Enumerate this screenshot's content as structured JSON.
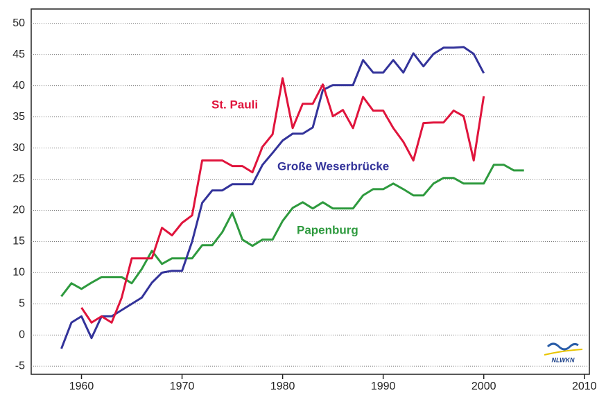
{
  "chart_data": {
    "type": "line",
    "x": [
      1958,
      1959,
      1960,
      1961,
      1962,
      1963,
      1964,
      1965,
      1966,
      1967,
      1968,
      1969,
      1970,
      1971,
      1972,
      1973,
      1974,
      1975,
      1976,
      1977,
      1978,
      1979,
      1980,
      1981,
      1982,
      1983,
      1984,
      1985,
      1986,
      1987,
      1988,
      1989,
      1990,
      1991,
      1992,
      1993,
      1994,
      1995,
      1996,
      1997,
      1998,
      1999,
      2000,
      2001,
      2002,
      2003,
      2004
    ],
    "series": [
      {
        "name": "Papenburg",
        "color": "#2e9a3e",
        "values": [
          6.2,
          8.3,
          7.4,
          8.4,
          9.3,
          9.3,
          9.3,
          8.3,
          10.6,
          13.5,
          11.4,
          12.3,
          12.3,
          12.3,
          14.4,
          14.4,
          16.5,
          19.6,
          15.3,
          14.3,
          15.3,
          15.3,
          18.3,
          20.4,
          21.3,
          20.3,
          21.3,
          20.3,
          20.3,
          20.3,
          22.4,
          23.4,
          23.4,
          24.3,
          23.4,
          22.4,
          22.4,
          24.3,
          25.2,
          25.2,
          24.3,
          24.3,
          24.3,
          27.3,
          27.3,
          26.4,
          26.4
        ]
      },
      {
        "name": "Große Weserbrücke",
        "color": "#33339a",
        "values": [
          -2.2,
          2.0,
          3.0,
          -0.5,
          3.0,
          3.0,
          4.0,
          5.0,
          6.0,
          8.4,
          10.0,
          10.3,
          10.3,
          15.0,
          21.2,
          23.2,
          23.2,
          24.2,
          24.2,
          24.2,
          27.3,
          29.2,
          31.2,
          32.3,
          32.3,
          33.3,
          39.3,
          40.1,
          40.1,
          40.1,
          44.1,
          42.1,
          42.1,
          44.1,
          42.1,
          45.2,
          43.1,
          45.1,
          46.1,
          46.1,
          46.2,
          45.1,
          42.0,
          null,
          null,
          null,
          null
        ]
      },
      {
        "name": "St. Pauli",
        "color": "#e0143c",
        "values": [
          null,
          null,
          4.4,
          2.0,
          3.0,
          2.0,
          6.0,
          12.3,
          12.3,
          12.3,
          17.2,
          16.0,
          18.0,
          19.2,
          28.0,
          28.0,
          28.0,
          27.1,
          27.1,
          26.1,
          30.2,
          32.2,
          41.2,
          33.2,
          37.1,
          37.1,
          40.2,
          35.1,
          36.1,
          33.2,
          38.2,
          36.0,
          36.0,
          33.2,
          31.0,
          28.0,
          34.0,
          34.1,
          34.1,
          36.0,
          35.1,
          28.0,
          38.3,
          null,
          null,
          null,
          null
        ]
      }
    ],
    "xlim": [
      1955,
      2010.5
    ],
    "xticks": [
      1960,
      1970,
      1980,
      1990,
      2000,
      2010
    ],
    "ylim": [
      -6.3,
      52.3
    ],
    "yticks": [
      -5,
      0,
      5,
      10,
      15,
      20,
      25,
      30,
      35,
      40,
      45,
      50
    ],
    "grid": true,
    "logo_text": "NLWKN"
  }
}
